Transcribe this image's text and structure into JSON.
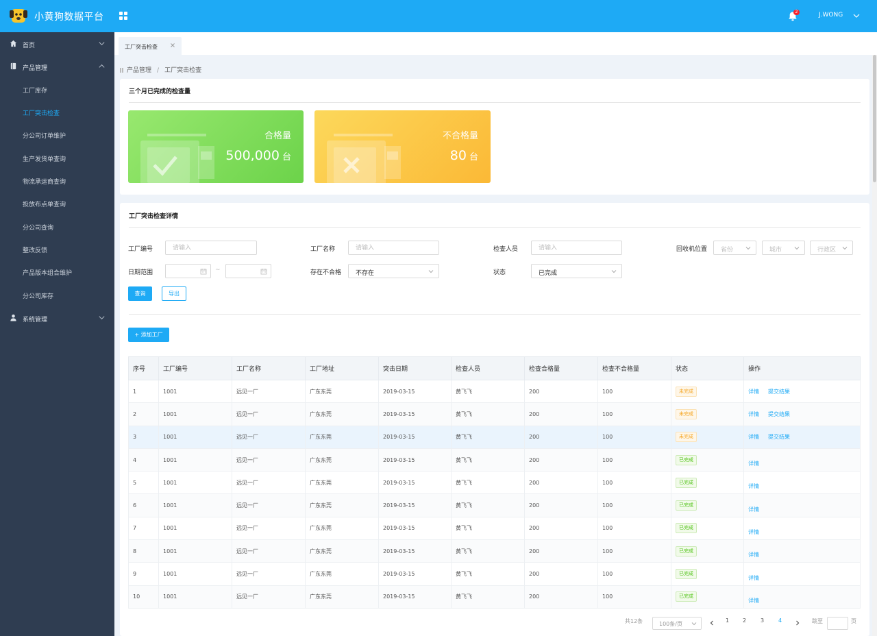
{
  "header": {
    "app_title": "小黄狗数据平台",
    "user_name": "J.WONG",
    "notification_count": "2",
    "accent": "#1eaaf5"
  },
  "sidebar": {
    "home": "首页",
    "product_mgmt": "产品管理",
    "product_items": [
      "工厂库存",
      "工厂突击检查",
      "分公司订单维护",
      "生产发货单查询",
      "物流承运商查询",
      "投放布点单查询",
      "分公司查询",
      "整改反馈",
      "产品版本组合维护",
      "分公司库存"
    ],
    "system_mgmt": "系统管理"
  },
  "tabs": [
    {
      "label": "工厂突击检查"
    }
  ],
  "breadcrumb": {
    "root": "产品管理",
    "current": "工厂突击检查"
  },
  "summary": {
    "title": "三个月已完成的检查量",
    "qualified": {
      "label": "合格量",
      "value": "500,000",
      "unit": "台"
    },
    "unqualified": {
      "label": "不合格量",
      "value": "80",
      "unit": "台"
    }
  },
  "details": {
    "title": "工厂突击检查详情",
    "filters": {
      "factory_no": {
        "label": "工厂编号",
        "placeholder": "请输入"
      },
      "factory_name": {
        "label": "工厂名称",
        "placeholder": "请输入"
      },
      "inspector": {
        "label": "检查人员",
        "placeholder": "请输入"
      },
      "location": {
        "label": "回收机位置",
        "province": "省份",
        "city": "城市",
        "district": "行政区"
      },
      "date_range": {
        "label": "日期范围",
        "sep": "~"
      },
      "has_unqualified": {
        "label": "存在不合格",
        "value": "不存在"
      },
      "status": {
        "label": "状态",
        "value": "已完成"
      }
    },
    "query_button": "查询",
    "export_button": "导出",
    "add_button": "+ 添加工厂"
  },
  "table": {
    "columns": [
      "序号",
      "工厂编号",
      "工厂名称",
      "工厂地址",
      "突击日期",
      "检查人员",
      "检查合格量",
      "检查不合格量",
      "状态",
      "操作"
    ],
    "rows": [
      {
        "no": "1",
        "code": "1001",
        "name": "远见一厂",
        "addr": "广东东莞",
        "date": "2019-03-15",
        "inspector": "黄飞飞",
        "pass": "200",
        "fail": "100",
        "status": "未完成"
      },
      {
        "no": "2",
        "code": "1001",
        "name": "远见一厂",
        "addr": "广东东莞",
        "date": "2019-03-15",
        "inspector": "黄飞飞",
        "pass": "200",
        "fail": "100",
        "status": "未完成"
      },
      {
        "no": "3",
        "code": "1001",
        "name": "远见一厂",
        "addr": "广东东莞",
        "date": "2019-03-15",
        "inspector": "黄飞飞",
        "pass": "200",
        "fail": "100",
        "status": "未完成"
      },
      {
        "no": "4",
        "code": "1001",
        "name": "远见一厂",
        "addr": "广东东莞",
        "date": "2019-03-15",
        "inspector": "黄飞飞",
        "pass": "200",
        "fail": "100",
        "status": "已完成"
      },
      {
        "no": "5",
        "code": "1001",
        "name": "远见一厂",
        "addr": "广东东莞",
        "date": "2019-03-15",
        "inspector": "黄飞飞",
        "pass": "200",
        "fail": "100",
        "status": "已完成"
      },
      {
        "no": "6",
        "code": "1001",
        "name": "远见一厂",
        "addr": "广东东莞",
        "date": "2019-03-15",
        "inspector": "黄飞飞",
        "pass": "200",
        "fail": "100",
        "status": "已完成"
      },
      {
        "no": "7",
        "code": "1001",
        "name": "远见一厂",
        "addr": "广东东莞",
        "date": "2019-03-15",
        "inspector": "黄飞飞",
        "pass": "200",
        "fail": "100",
        "status": "已完成"
      },
      {
        "no": "8",
        "code": "1001",
        "name": "远见一厂",
        "addr": "广东东莞",
        "date": "2019-03-15",
        "inspector": "黄飞飞",
        "pass": "200",
        "fail": "100",
        "status": "已完成"
      },
      {
        "no": "9",
        "code": "1001",
        "name": "远见一厂",
        "addr": "广东东莞",
        "date": "2019-03-15",
        "inspector": "黄飞飞",
        "pass": "200",
        "fail": "100",
        "status": "已完成"
      },
      {
        "no": "10",
        "code": "1001",
        "name": "远见一厂",
        "addr": "广东东莞",
        "date": "2019-03-15",
        "inspector": "黄飞飞",
        "pass": "200",
        "fail": "100",
        "status": "已完成"
      }
    ],
    "detail_action": "详情",
    "submit_action": "提交结果",
    "pending_label": "未完成"
  },
  "pagination": {
    "total": "共12条",
    "page_size": "100条/页",
    "pages": [
      "1",
      "2",
      "3",
      "4"
    ],
    "current": "4",
    "goto_label": "跳至",
    "page_unit": "页"
  }
}
